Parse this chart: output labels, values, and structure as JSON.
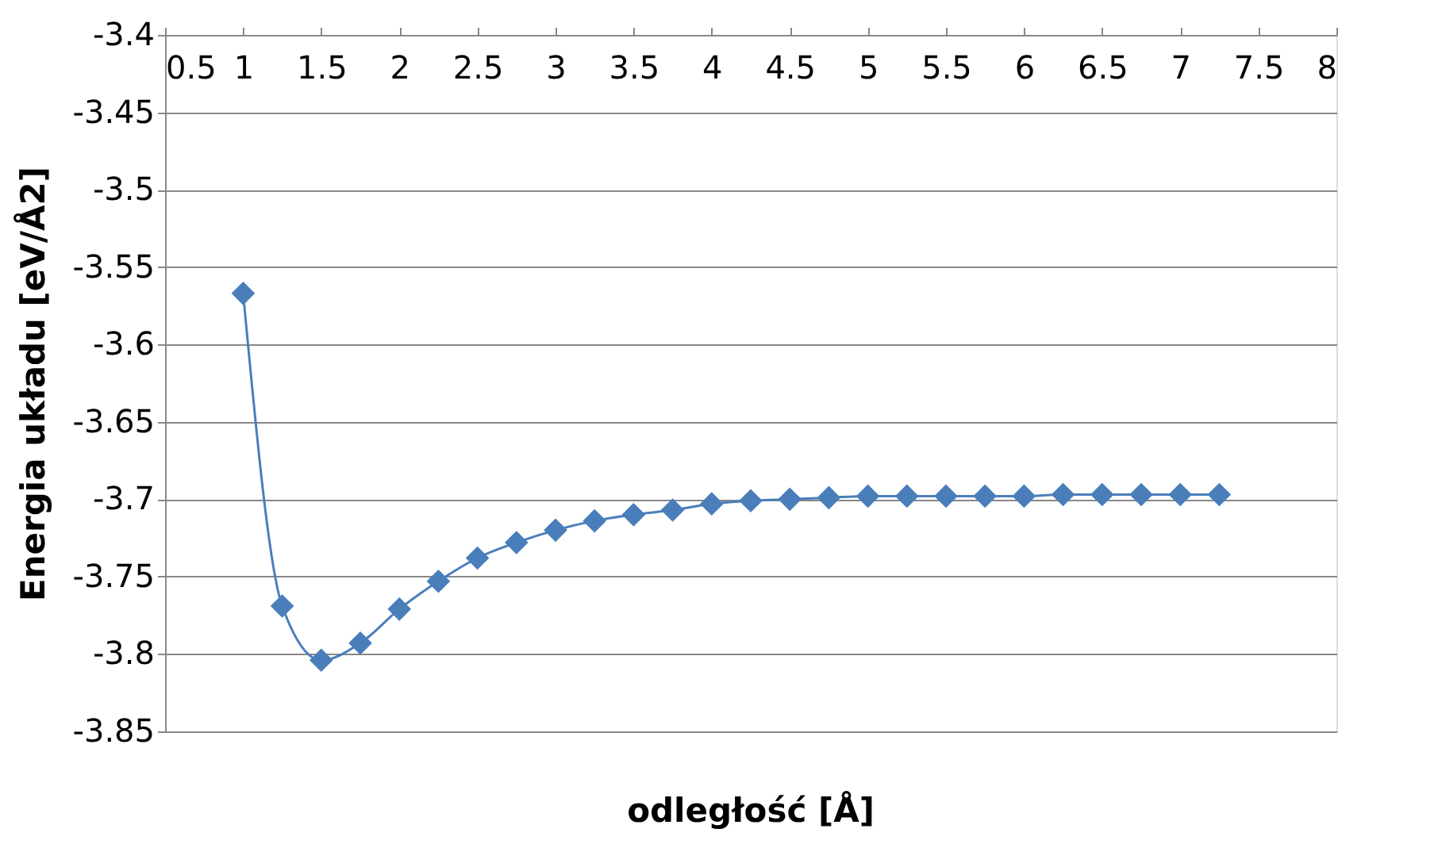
{
  "chart_data": {
    "type": "line",
    "xlabel": "odległość [Å]",
    "ylabel": "Energia układu [eV/Å2]",
    "x": [
      1,
      1.25,
      1.5,
      1.75,
      2,
      2.25,
      2.5,
      2.75,
      3,
      3.25,
      3.5,
      3.75,
      4,
      4.25,
      4.5,
      4.75,
      5,
      5.25,
      5.5,
      5.75,
      6,
      6.25,
      6.5,
      6.75,
      7,
      7.25
    ],
    "series": [
      {
        "color": "#4a7ebb",
        "values": [
          -3.567,
          -3.769,
          -3.804,
          -3.793,
          -3.771,
          -3.753,
          -3.738,
          -3.728,
          -3.72,
          -3.714,
          -3.71,
          -3.707,
          -3.703,
          -3.701,
          -3.7,
          -3.699,
          -3.698,
          -3.698,
          -3.698,
          -3.698,
          -3.698,
          -3.697,
          -3.697,
          -3.697,
          -3.697,
          -3.697
        ]
      }
    ],
    "xlim": [
      0.5,
      8
    ],
    "xticks": [
      0.5,
      1,
      1.5,
      2,
      2.5,
      3,
      3.5,
      4,
      4.5,
      5,
      5.5,
      6,
      6.5,
      7,
      7.5,
      8
    ],
    "ylim": [
      -3.85,
      -3.4
    ],
    "yticks": [
      -3.85,
      -3.8,
      -3.75,
      -3.7,
      -3.65,
      -3.6,
      -3.55,
      -3.5,
      -3.45,
      -3.4
    ],
    "grid": "y",
    "marker": "diamond",
    "line_style": "solid"
  }
}
